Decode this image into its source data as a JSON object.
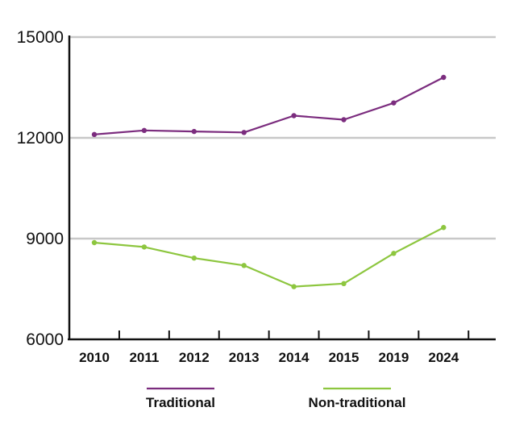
{
  "chart_data": {
    "type": "line",
    "title": "",
    "xlabel": "",
    "ylabel": "",
    "categories": [
      "2010",
      "2011",
      "2012",
      "2013",
      "2014",
      "2015",
      "2019",
      "2024"
    ],
    "ylim": [
      6000,
      15000
    ],
    "yticks": [
      6000,
      9000,
      12000,
      15000
    ],
    "ytick_labels": [
      "6000",
      "9000",
      "12000",
      "15000"
    ],
    "grid": true,
    "legend_position": "bottom",
    "series": [
      {
        "name": "Traditional",
        "color": "#7b2c7e",
        "values": [
          12100,
          12220,
          12190,
          12160,
          12660,
          12540,
          13040,
          13800
        ]
      },
      {
        "name": "Non-traditional",
        "color": "#8dc63f",
        "values": [
          8880,
          8750,
          8420,
          8200,
          7570,
          7660,
          8560,
          9330
        ]
      }
    ],
    "axis_color": "#111111",
    "grid_color": "#c8c8c8"
  }
}
